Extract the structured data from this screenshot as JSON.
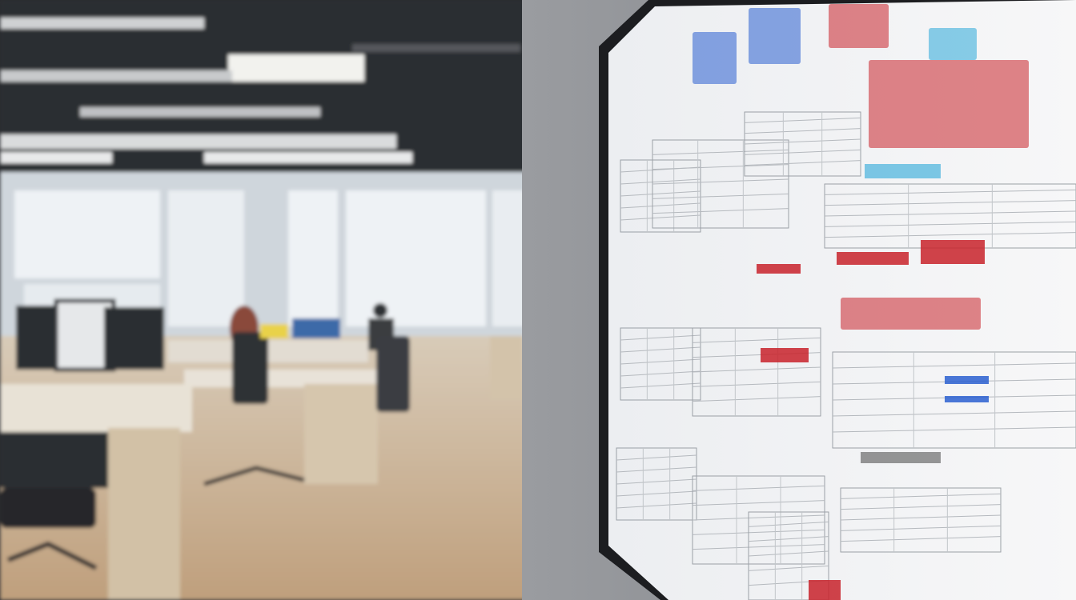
{
  "scene": {
    "description_type": "photo",
    "colors": {
      "ceiling": "#2b2d31",
      "window_light": "#e9eef2",
      "floor": "#c9b49a",
      "wall": "#8c8f94",
      "screen": "#f1f2f4",
      "accent_red": "#c8222a",
      "accent_blue": "#2a5fd0",
      "accent_cyan": "#2aa7d8"
    }
  }
}
